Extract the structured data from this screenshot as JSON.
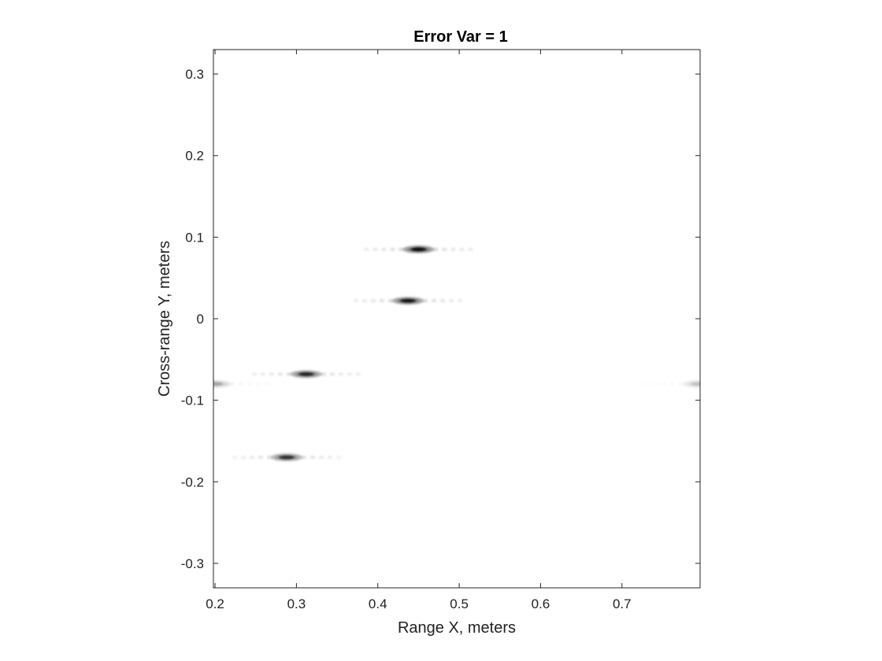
{
  "chart_data": {
    "type": "heatmap",
    "title": "Error Var = 1",
    "xlabel": "Range X, meters",
    "ylabel": "Cross-range Y, meters",
    "xlim": [
      0.198,
      0.796
    ],
    "ylim": [
      -0.33,
      0.33
    ],
    "xticks": [
      0.2,
      0.3,
      0.4,
      0.5,
      0.6,
      0.7
    ],
    "yticks": [
      -0.3,
      -0.2,
      -0.1,
      0,
      0.1,
      0.2,
      0.3
    ],
    "xtick_labels": [
      "0.2",
      "0.3",
      "0.4",
      "0.5",
      "0.6",
      "0.7"
    ],
    "ytick_labels": [
      "-0.3",
      "-0.2",
      "-0.1",
      "0",
      "0.1",
      "0.2",
      "0.3"
    ],
    "grid": false,
    "colormap": "gray (inverted, white = low intensity)",
    "scatterers": [
      {
        "x": 0.45,
        "y": 0.085,
        "intensity": 1.0
      },
      {
        "x": 0.437,
        "y": 0.022,
        "intensity": 0.95
      },
      {
        "x": 0.312,
        "y": -0.068,
        "intensity": 0.85
      },
      {
        "x": 0.288,
        "y": -0.17,
        "intensity": 0.8
      },
      {
        "x": 0.2,
        "y": -0.08,
        "intensity": 0.3
      },
      {
        "x": 0.794,
        "y": -0.08,
        "intensity": 0.2
      }
    ]
  }
}
